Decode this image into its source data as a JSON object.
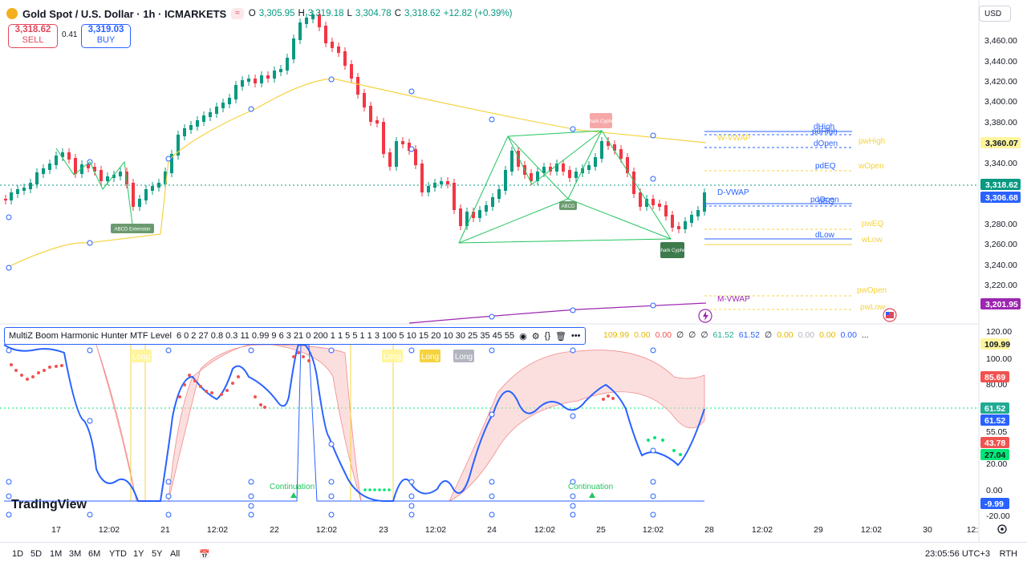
{
  "header": {
    "title": "Gold Spot / U.S. Dollar · 1h · ICMARKETS",
    "pill": "≈",
    "ohlc": {
      "o_label": "O",
      "o": "3,305.95",
      "h_label": "H",
      "h": "3,319.18",
      "l_label": "L",
      "l": "3,304.78",
      "c_label": "C",
      "c": "3,318.62",
      "change": "+12.82 (+0.39%)"
    }
  },
  "trade": {
    "sell_price": "3,318.62",
    "sell_label": "SELL",
    "spread": "0.41",
    "buy_price": "3,319.03",
    "buy_label": "BUY"
  },
  "currency": "USD",
  "price_axis": {
    "ticks": [
      "3,460.00",
      "3,440.00",
      "3,420.00",
      "3,400.00",
      "3,380.00",
      "3,340.00",
      "3,280.00",
      "3,260.00",
      "3,240.00",
      "3,220.00"
    ],
    "badges": [
      {
        "text": "3,360.07",
        "bg": "#fff59d",
        "fg": "#131722"
      },
      {
        "text": "3,318.62",
        "bg": "#089981",
        "fg": "#ffffff"
      },
      {
        "text": "3,306.68",
        "bg": "#2962ff",
        "fg": "#ffffff"
      },
      {
        "text": "3,201.95",
        "bg": "#9c27b0",
        "fg": "#ffffff"
      }
    ]
  },
  "osc_axis": {
    "ticks": [
      "120.00",
      "100.00",
      "80.00",
      "55.05",
      "20.00",
      "0.00",
      "-20.00"
    ],
    "badges": [
      {
        "text": "109.99",
        "bg": "#fff59d",
        "fg": "#131722"
      },
      {
        "text": "85.69",
        "bg": "#f05350",
        "fg": "#ffffff"
      },
      {
        "text": "61.52",
        "bg": "#22ab94",
        "fg": "#ffffff"
      },
      {
        "text": "61.52",
        "bg": "#2962ff",
        "fg": "#ffffff"
      },
      {
        "text": "43.78",
        "bg": "#f05350",
        "fg": "#ffffff"
      },
      {
        "text": "27.04",
        "bg": "#00e676",
        "fg": "#131722"
      },
      {
        "text": "-9.99",
        "bg": "#2962ff",
        "fg": "#ffffff"
      }
    ]
  },
  "time_axis": [
    "17",
    "12:02",
    "21",
    "12:02",
    "22",
    "12:02",
    "23",
    "12:02",
    "24",
    "12:02",
    "25",
    "12:02",
    "28",
    "12:02",
    "29",
    "12:02",
    "30",
    "12:"
  ],
  "levels": {
    "dHigh": "dHigh",
    "pdHigh": "pdHigh",
    "dOpen": "dOpen",
    "pwHigh": "pwHigh",
    "wVWAP": "W-VWAP",
    "pdEQ": "pdEQ",
    "wOpen": "wOpen",
    "dVWAP": "D-VWAP",
    "pdOpen": "pdOpen",
    "dEQ": "dEQ",
    "pwEQ": "pwEQ",
    "dLow": "dLow",
    "wLow": "wLow",
    "pwOpen": "pwOpen",
    "mVWAP": "M-VWAP",
    "pwLow": "pwLow"
  },
  "patterns": {
    "abcd_ext": "ABCD Extension",
    "abcd": "ABCD",
    "shark_top": "Shark Cypher",
    "shark_bottom": "Shark Cypher"
  },
  "indicator": {
    "name": "MultiZ Boom Harmonic Hunter MTF Level",
    "params": "6 0 2 27 0.8 0.3 11 0.99 9 6 3 21 0 200 1 1 5 5 1 1 3 100 5 10 15 20 10 30 25 35 45 55",
    "values": [
      {
        "t": "109.99",
        "c": "#e6b800"
      },
      {
        "t": "0.00",
        "c": "#e6b800"
      },
      {
        "t": "0.00",
        "c": "#f05350"
      },
      {
        "t": "∅",
        "c": "#131722"
      },
      {
        "t": "∅",
        "c": "#131722"
      },
      {
        "t": "∅",
        "c": "#131722"
      },
      {
        "t": "61.52",
        "c": "#22ab94"
      },
      {
        "t": "61.52",
        "c": "#2962ff"
      },
      {
        "t": "∅",
        "c": "#131722"
      },
      {
        "t": "0.00",
        "c": "#e6b800"
      },
      {
        "t": "0.00",
        "c": "#b2b5be"
      },
      {
        "t": "0.00",
        "c": "#e6b800"
      },
      {
        "t": "0.00",
        "c": "#2962ff"
      },
      {
        "t": "...",
        "c": "#131722"
      }
    ]
  },
  "signals": {
    "long1": "Long",
    "long2": "Long",
    "long3": "Long",
    "long4": "Long",
    "cont1": "Continuation",
    "cont2": "Continuation"
  },
  "brand": "TradingView",
  "bottom": {
    "timeframes": [
      "1D",
      "5D",
      "1M",
      "3M",
      "6M",
      "YTD",
      "1Y",
      "5Y",
      "All"
    ],
    "clock": "23:05:56 UTC+3",
    "session": "RTH"
  },
  "colors": {
    "up": "#089981",
    "down": "#f23645",
    "yellow": "#f5d33f",
    "blue": "#2962ff",
    "purple": "#9c27b0",
    "green": "#22c55e"
  }
}
